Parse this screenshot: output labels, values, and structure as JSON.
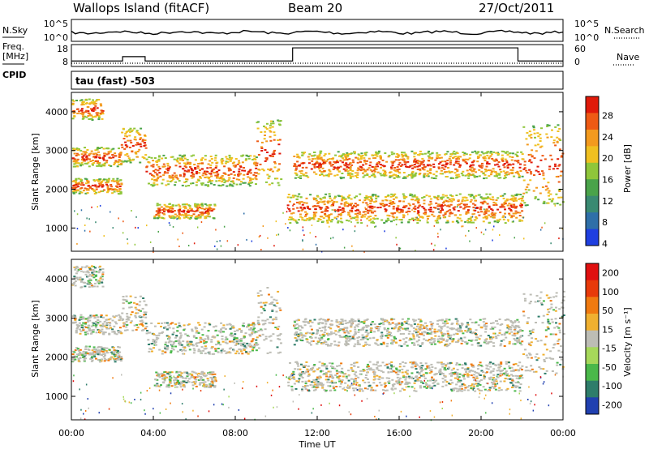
{
  "header": {
    "station": "Wallops Island (fitACF)",
    "beam": "Beam 20",
    "date": "27/Oct/2011"
  },
  "side_labels": {
    "nsky": "N.Sky",
    "freq": "Freq.",
    "freq_unit": "[MHz]",
    "cpid": "CPID",
    "nsearch": "N.Search",
    "nave": "Nave"
  },
  "top_panel": {
    "nsky_ticks": [
      "10^5",
      "10^0"
    ],
    "nsearch_ticks": [
      "10^5",
      "10^0"
    ],
    "freq_ticks": [
      "18",
      "8"
    ],
    "nave_ticks": [
      "60",
      "0"
    ]
  },
  "cpid_text": "tau (fast) -503",
  "colors": {
    "power_scale": [
      "#1f3fe0",
      "#2f6fa8",
      "#3a8a72",
      "#4aa34a",
      "#8fc63a",
      "#f0c020",
      "#f39a1e",
      "#ee5a14",
      "#e01a0a"
    ],
    "velocity_scale": [
      "#2040b0",
      "#2e7d6a",
      "#4ab84a",
      "#a6d85a",
      "#bdbdb5",
      "#f0b030",
      "#f07a10",
      "#e83a0a",
      "#e01010"
    ]
  },
  "chart_data": [
    {
      "type": "heatmap",
      "name": "power",
      "ylabel": "Slant Range [km]",
      "y_ticks": [
        "1000",
        "2000",
        "3000",
        "4000"
      ],
      "ylim": [
        400,
        4500
      ],
      "colorbar_label": "Power [dB]",
      "colorbar_ticks": [
        "28",
        "24",
        "20",
        "16",
        "12",
        "8",
        "4"
      ],
      "colorbar_range": [
        0,
        32
      ]
    },
    {
      "type": "heatmap",
      "name": "velocity",
      "ylabel": "Slant Range [km]",
      "y_ticks": [
        "1000",
        "2000",
        "3000",
        "4000"
      ],
      "ylim": [
        400,
        4500
      ],
      "colorbar_label": "Velocity [m s⁻¹]",
      "colorbar_ticks": [
        "200",
        "100",
        "50",
        "15",
        "-15",
        "-50",
        "-100",
        "-200"
      ]
    }
  ],
  "x_axis": {
    "label": "Time UT",
    "ticks": [
      "00:00",
      "04:00",
      "08:00",
      "12:00",
      "16:00",
      "20:00",
      "00:00"
    ],
    "range_hours": [
      0,
      24
    ]
  },
  "echo_bands": [
    {
      "t": [
        0.0,
        2.4
      ],
      "r": [
        1900,
        2300
      ]
    },
    {
      "t": [
        0.0,
        2.4
      ],
      "r": [
        2600,
        3100
      ]
    },
    {
      "t": [
        0.0,
        1.5
      ],
      "r": [
        3800,
        4350
      ]
    },
    {
      "t": [
        2.4,
        3.6
      ],
      "r": [
        2700,
        3600
      ]
    },
    {
      "t": [
        3.6,
        9.0
      ],
      "r": [
        2100,
        2900
      ]
    },
    {
      "t": [
        4.0,
        7.0
      ],
      "r": [
        1250,
        1650
      ]
    },
    {
      "t": [
        9.0,
        10.2
      ],
      "r": [
        2100,
        3800
      ]
    },
    {
      "t": [
        10.8,
        22.0
      ],
      "r": [
        2300,
        3000
      ]
    },
    {
      "t": [
        10.5,
        22.0
      ],
      "r": [
        1150,
        1900
      ]
    },
    {
      "t": [
        22.0,
        24.0
      ],
      "r": [
        1600,
        3700
      ]
    }
  ]
}
